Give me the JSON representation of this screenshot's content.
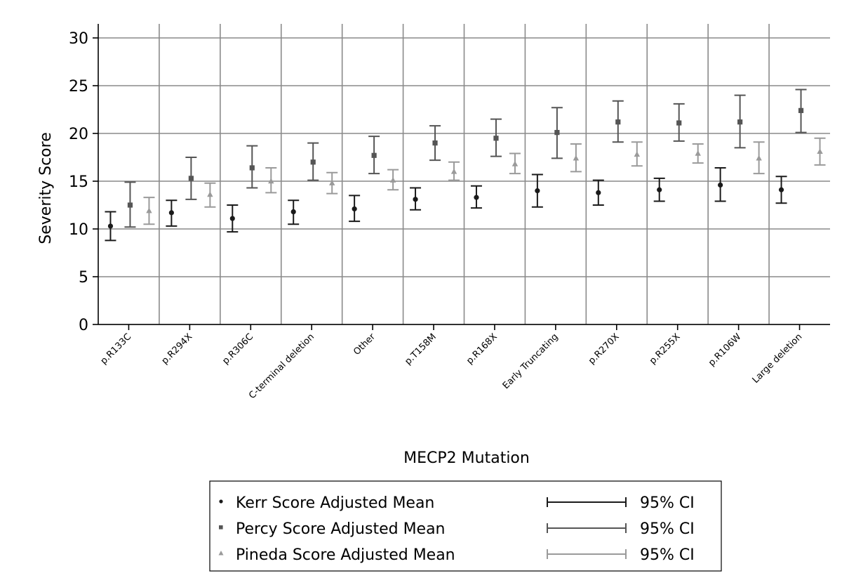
{
  "chart_data": {
    "type": "scatter",
    "title": "",
    "xlabel": "MECP2 Mutation",
    "ylabel": "Severity Score",
    "ylim": [
      0,
      30
    ],
    "yticks": [
      0,
      5,
      10,
      15,
      20,
      25,
      30
    ],
    "grid": true,
    "categories": [
      "p.R133C",
      "p.R294X",
      "p.R306C",
      "C-terminal deletion",
      "Other",
      "p.T158M",
      "p.R168X",
      "Early Truncating",
      "p.R270X",
      "p.R255X",
      "p.R106W",
      "Large deletion"
    ],
    "series": [
      {
        "name": "Kerr Score Adjusted Mean",
        "marker": "circle",
        "color": "#1a1a1a",
        "values": [
          10.3,
          11.7,
          11.1,
          11.8,
          12.1,
          13.1,
          13.3,
          14.0,
          13.8,
          14.1,
          14.6,
          14.1
        ],
        "ci_low": [
          8.8,
          10.3,
          9.7,
          10.5,
          10.8,
          12.0,
          12.2,
          12.3,
          12.5,
          12.9,
          12.9,
          12.7
        ],
        "ci_high": [
          11.8,
          13.0,
          12.5,
          13.0,
          13.5,
          14.3,
          14.5,
          15.7,
          15.1,
          15.3,
          16.4,
          15.5
        ]
      },
      {
        "name": "Percy Score Adjusted Mean",
        "marker": "square",
        "color": "#555555",
        "values": [
          12.5,
          15.3,
          16.4,
          17.0,
          17.7,
          19.0,
          19.5,
          20.1,
          21.2,
          21.1,
          21.2,
          22.4
        ],
        "ci_low": [
          10.2,
          13.1,
          14.3,
          15.1,
          15.8,
          17.2,
          17.6,
          17.4,
          19.1,
          19.2,
          18.5,
          20.1
        ],
        "ci_high": [
          14.9,
          17.5,
          18.7,
          19.0,
          19.7,
          20.8,
          21.5,
          22.7,
          23.4,
          23.1,
          24.0,
          24.6
        ]
      },
      {
        "name": "Pineda Score Adjusted Mean",
        "marker": "triangle",
        "color": "#9a9a9a",
        "values": [
          11.9,
          13.6,
          15.0,
          14.8,
          15.1,
          16.0,
          16.8,
          17.4,
          17.8,
          17.9,
          17.4,
          18.1
        ],
        "ci_low": [
          10.5,
          12.3,
          13.8,
          13.7,
          14.1,
          15.1,
          15.8,
          16.0,
          16.6,
          16.9,
          15.8,
          16.7
        ],
        "ci_high": [
          13.3,
          14.8,
          16.4,
          15.9,
          16.2,
          17.0,
          17.9,
          18.9,
          19.1,
          18.9,
          19.1,
          19.5
        ]
      }
    ],
    "legend": {
      "placement": "bottom",
      "ci_label": "95% CI"
    }
  }
}
